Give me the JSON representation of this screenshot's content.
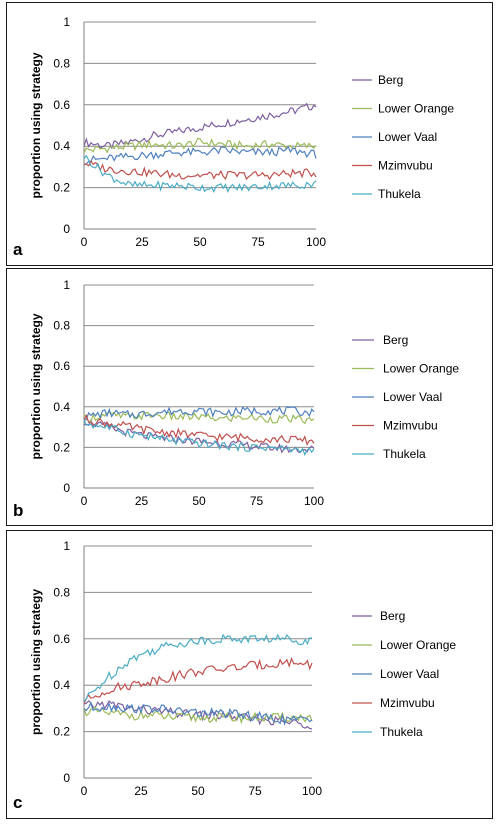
{
  "chart_data": [
    {
      "panel_label": "a",
      "type": "line",
      "ylabel": "proportion using strategy",
      "xlabel": "",
      "xlim": [
        0,
        100
      ],
      "ylim": [
        0,
        1
      ],
      "xticks": [
        "0",
        "25",
        "50",
        "75",
        "100"
      ],
      "yticks": [
        "0",
        "0.2",
        "0.4",
        "0.6",
        "0.8",
        "1"
      ],
      "grid": "horizontal",
      "legend": "right",
      "x": [
        0,
        10,
        20,
        30,
        40,
        50,
        60,
        70,
        80,
        90,
        100
      ],
      "series": [
        {
          "name": "Berg",
          "color": "#7e60a2",
          "values": [
            0.42,
            0.4,
            0.42,
            0.45,
            0.47,
            0.49,
            0.51,
            0.53,
            0.55,
            0.57,
            0.6
          ]
        },
        {
          "name": "Lower Orange",
          "color": "#9bbb59",
          "values": [
            0.38,
            0.39,
            0.4,
            0.41,
            0.4,
            0.42,
            0.41,
            0.4,
            0.41,
            0.4,
            0.4
          ]
        },
        {
          "name": "Lower Vaal",
          "color": "#4f81bd",
          "values": [
            0.33,
            0.34,
            0.35,
            0.36,
            0.37,
            0.37,
            0.38,
            0.37,
            0.37,
            0.38,
            0.36
          ]
        },
        {
          "name": "Mzimvubu",
          "color": "#c0504d",
          "values": [
            0.32,
            0.29,
            0.28,
            0.27,
            0.26,
            0.26,
            0.26,
            0.26,
            0.26,
            0.27,
            0.27
          ]
        },
        {
          "name": "Thukela",
          "color": "#4bacc6",
          "values": [
            0.35,
            0.26,
            0.21,
            0.21,
            0.21,
            0.2,
            0.2,
            0.2,
            0.21,
            0.21,
            0.22
          ]
        }
      ]
    },
    {
      "panel_label": "b",
      "type": "line",
      "ylabel": "proportion using strategy",
      "xlabel": "",
      "xlim": [
        0,
        100
      ],
      "ylim": [
        0,
        1
      ],
      "xticks": [
        "0",
        "25",
        "50",
        "75",
        "100"
      ],
      "yticks": [
        "0",
        "0.2",
        "0.4",
        "0.6",
        "0.8",
        "1"
      ],
      "grid": "horizontal",
      "legend": "right",
      "x": [
        0,
        10,
        20,
        30,
        40,
        50,
        60,
        70,
        80,
        90,
        100
      ],
      "series": [
        {
          "name": "Berg",
          "color": "#7e60a2",
          "values": [
            0.33,
            0.3,
            0.27,
            0.25,
            0.24,
            0.23,
            0.22,
            0.21,
            0.2,
            0.19,
            0.19
          ]
        },
        {
          "name": "Lower Orange",
          "color": "#9bbb59",
          "values": [
            0.34,
            0.36,
            0.35,
            0.36,
            0.35,
            0.35,
            0.34,
            0.35,
            0.34,
            0.34,
            0.33
          ]
        },
        {
          "name": "Lower Vaal",
          "color": "#4f81bd",
          "values": [
            0.35,
            0.37,
            0.36,
            0.37,
            0.38,
            0.38,
            0.37,
            0.38,
            0.38,
            0.38,
            0.37
          ]
        },
        {
          "name": "Mzimvubu",
          "color": "#c0504d",
          "values": [
            0.34,
            0.32,
            0.3,
            0.28,
            0.27,
            0.26,
            0.25,
            0.25,
            0.24,
            0.24,
            0.23
          ]
        },
        {
          "name": "Thukela",
          "color": "#4bacc6",
          "values": [
            0.32,
            0.3,
            0.27,
            0.25,
            0.23,
            0.22,
            0.21,
            0.2,
            0.2,
            0.19,
            0.18
          ]
        }
      ]
    },
    {
      "panel_label": "c",
      "type": "line",
      "ylabel": "proportion using strategy",
      "xlabel": "",
      "xlim": [
        0,
        100
      ],
      "ylim": [
        0,
        1
      ],
      "xticks": [
        "0",
        "25",
        "50",
        "75",
        "100"
      ],
      "yticks": [
        "0",
        "0.2",
        "0.4",
        "0.6",
        "0.8",
        "1"
      ],
      "grid": "horizontal",
      "legend": "right",
      "x": [
        0,
        10,
        20,
        30,
        40,
        50,
        60,
        70,
        80,
        90,
        100
      ],
      "series": [
        {
          "name": "Berg",
          "color": "#7e60a2",
          "values": [
            0.31,
            0.32,
            0.3,
            0.29,
            0.28,
            0.27,
            0.27,
            0.26,
            0.25,
            0.24,
            0.23
          ]
        },
        {
          "name": "Lower Orange",
          "color": "#9bbb59",
          "values": [
            0.29,
            0.28,
            0.27,
            0.27,
            0.26,
            0.26,
            0.26,
            0.26,
            0.26,
            0.26,
            0.26
          ]
        },
        {
          "name": "Lower Vaal",
          "color": "#4f81bd",
          "values": [
            0.3,
            0.31,
            0.3,
            0.3,
            0.29,
            0.28,
            0.28,
            0.27,
            0.26,
            0.25,
            0.25
          ]
        },
        {
          "name": "Mzimvubu",
          "color": "#c0504d",
          "values": [
            0.33,
            0.38,
            0.4,
            0.42,
            0.44,
            0.46,
            0.47,
            0.48,
            0.49,
            0.5,
            0.49
          ]
        },
        {
          "name": "Thukela",
          "color": "#4bacc6",
          "values": [
            0.33,
            0.43,
            0.51,
            0.55,
            0.58,
            0.59,
            0.6,
            0.6,
            0.6,
            0.6,
            0.59
          ]
        }
      ]
    }
  ]
}
